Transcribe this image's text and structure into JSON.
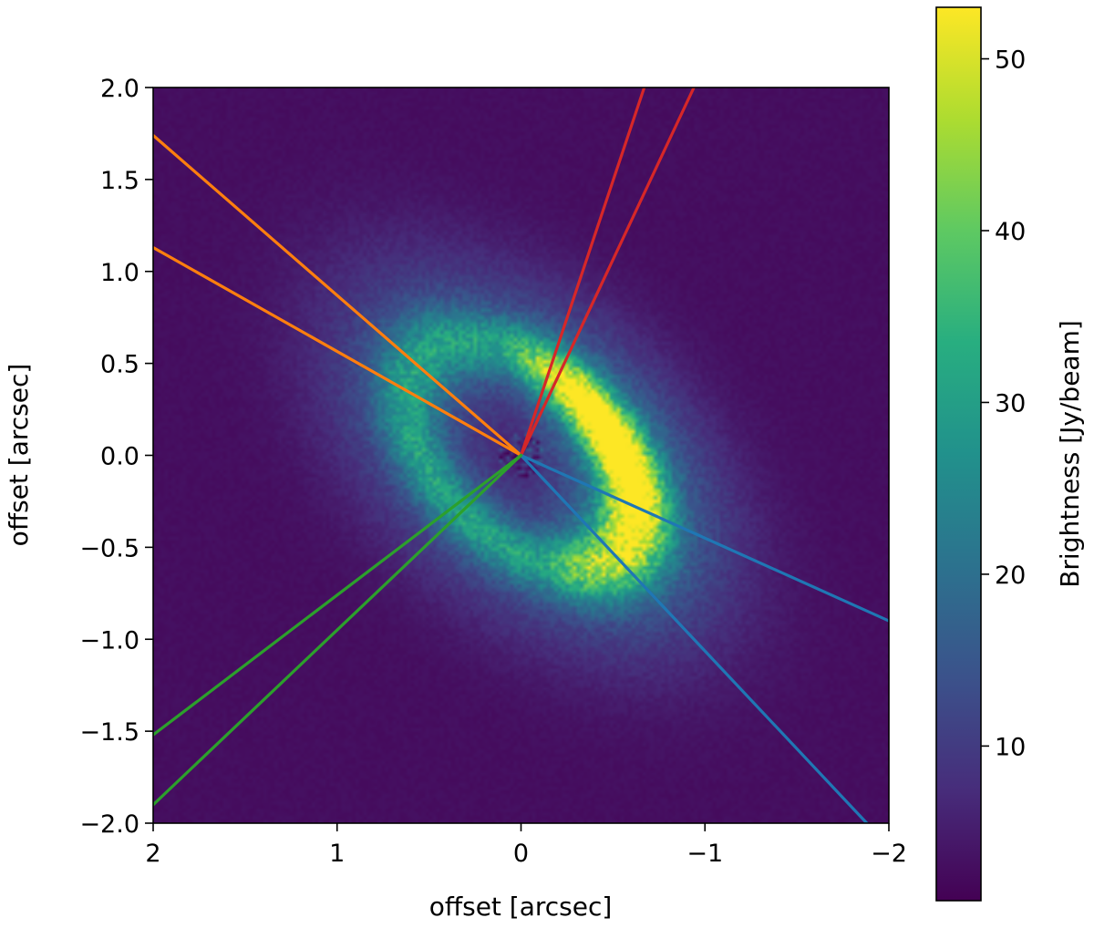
{
  "chart_data": {
    "type": "heatmap",
    "title": "",
    "xlabel": "offset [arcsec]",
    "ylabel": "offset [arcsec]",
    "xlim": [
      2,
      -2
    ],
    "ylim": [
      -2,
      2
    ],
    "x_inverted": true,
    "x_ticks": [
      2,
      1,
      0,
      -1,
      -2
    ],
    "x_tick_labels": [
      "2",
      "1",
      "0",
      "−1",
      "−2"
    ],
    "y_ticks": [
      -2.0,
      -1.5,
      -1.0,
      -0.5,
      0.0,
      0.5,
      1.0,
      1.5,
      2.0
    ],
    "y_tick_labels": [
      "−2.0",
      "−1.5",
      "−1.0",
      "−0.5",
      "0.0",
      "0.5",
      "1.0",
      "1.5",
      "2.0"
    ],
    "grid": false,
    "colormap": "viridis",
    "colorbar": {
      "label": "Brightness [Jy/beam]",
      "range": [
        1,
        53
      ],
      "ticks": [
        10,
        20,
        30,
        40,
        50
      ],
      "tick_labels": [
        "10",
        "20",
        "30",
        "40",
        "50"
      ]
    },
    "emission_model": {
      "description_ring": "elliptical ring, brighter on west side",
      "ring_radius_arcsec": 0.75,
      "ring_width_arcsec": 0.22,
      "inclination_axis_ratio": 0.6,
      "major_axis_pa_deg": 45,
      "peak_position": [
        -0.55,
        0.1
      ],
      "background_level": 3,
      "peak_level": 53
    },
    "wedges": [
      {
        "color": "#ff7f0e",
        "lines": [
          [
            [
              0,
              0
            ],
            [
              2.0,
              1.74
            ]
          ],
          [
            [
              0,
              0
            ],
            [
              2.0,
              1.13
            ]
          ]
        ]
      },
      {
        "color": "#d62728",
        "lines": [
          [
            [
              0,
              0
            ],
            [
              -0.67,
              2.0
            ]
          ],
          [
            [
              0,
              0
            ],
            [
              -0.94,
              2.0
            ]
          ]
        ]
      },
      {
        "color": "#1f77b4",
        "lines": [
          [
            [
              0,
              0
            ],
            [
              -2.0,
              -0.9
            ]
          ],
          [
            [
              0,
              0
            ],
            [
              -1.88,
              -2.0
            ]
          ]
        ]
      },
      {
        "color": "#2ca02c",
        "lines": [
          [
            [
              0,
              0
            ],
            [
              2.0,
              -1.52
            ]
          ],
          [
            [
              0,
              0
            ],
            [
              2.0,
              -1.9
            ]
          ]
        ]
      }
    ]
  }
}
